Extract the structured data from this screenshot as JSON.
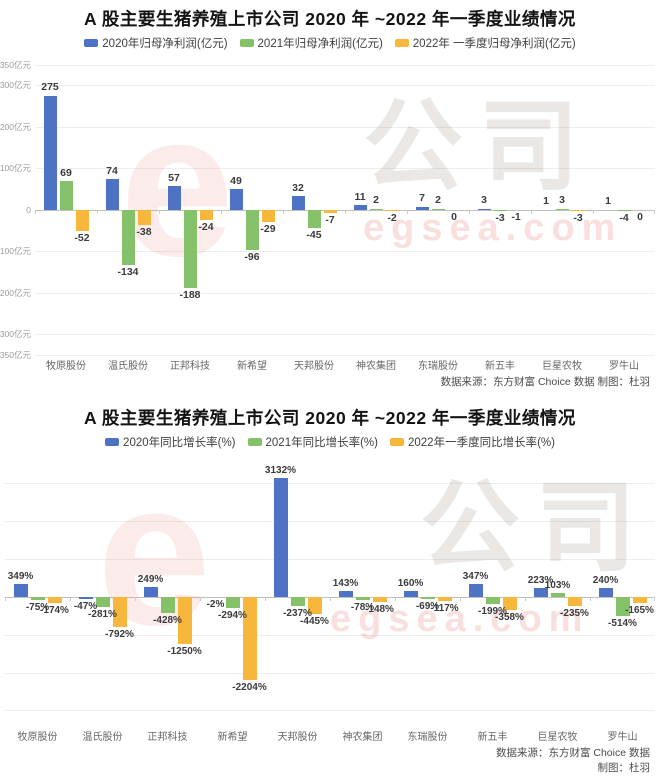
{
  "chart_data": [
    {
      "type": "bar",
      "title": "A 股主要生猪养殖上市公司 2020 年 ~2022 年一季度业绩情况",
      "legend_position": "top",
      "grid": true,
      "categories": [
        "牧原股份",
        "温氏股份",
        "正邦科技",
        "新希望",
        "天邦股份",
        "神农集团",
        "东瑞股份",
        "新五丰",
        "巨星农牧",
        "罗牛山"
      ],
      "series": [
        {
          "name": "2020年归母净利润(亿元)",
          "color": "#4e72c4",
          "values": [
            275,
            74,
            57,
            49,
            32,
            11,
            7,
            3,
            1,
            1
          ]
        },
        {
          "name": "2021年归母净利润(亿元)",
          "color": "#85c169",
          "values": [
            69,
            -134,
            -188,
            -96,
            -45,
            2,
            2,
            -3,
            3,
            -4
          ]
        },
        {
          "name": "2022年 一季度归母净利润(亿元)",
          "color": "#f6b73c",
          "values": [
            -52,
            -38,
            -24,
            -29,
            -7,
            -2,
            0,
            -1,
            -3,
            0
          ]
        }
      ],
      "value_suffix": "",
      "y_unit": "亿元",
      "ylim": [
        -350,
        350
      ],
      "y_ticks": [
        {
          "value": 350,
          "label": "350亿元"
        },
        {
          "value": 300,
          "label": "300亿元"
        },
        {
          "value": 200,
          "label": "200亿元"
        },
        {
          "value": 100,
          "label": "100亿元"
        },
        {
          "value": 0,
          "label": "0"
        },
        {
          "value": -100,
          "label": "-100亿元"
        },
        {
          "value": -200,
          "label": "-200亿元"
        },
        {
          "value": -300,
          "label": "-300亿元"
        },
        {
          "value": -350,
          "label": "-350亿元"
        }
      ],
      "source_lines": [
        "数据来源：东方财富 Choice 数据 制图：杜羽"
      ],
      "watermark": {
        "logo": "e",
        "text": "公司",
        "domain": "egsea.com"
      }
    },
    {
      "type": "bar",
      "title": "A 股主要生猪养殖上市公司 2020 年 ~2022 年一季度业绩情况",
      "legend_position": "top",
      "grid": true,
      "categories": [
        "牧原股份",
        "温氏股份",
        "正邦科技",
        "新希望",
        "天邦股份",
        "神农集团",
        "东瑞股份",
        "新五丰",
        "巨星农牧",
        "罗牛山"
      ],
      "series": [
        {
          "name": "2020年同比增长率(%)",
          "color": "#4e72c4",
          "values": [
            349,
            -47,
            249,
            -2,
            3132,
            143,
            160,
            347,
            223,
            240
          ]
        },
        {
          "name": "2021年同比增长率(%)",
          "color": "#85c169",
          "values": [
            -75,
            -281,
            -428,
            -294,
            -237,
            -78,
            -69,
            -199,
            103,
            -514
          ]
        },
        {
          "name": "2022年一季度同比增长率(%)",
          "color": "#f6b73c",
          "values": [
            -174,
            -792,
            -1250,
            -2204,
            -445,
            -148,
            -117,
            -358,
            -235,
            -165
          ]
        }
      ],
      "value_suffix": "%",
      "y_unit": "%",
      "ylim": [
        -3100,
        3500
      ],
      "y_ticks": [
        {
          "value": 3000,
          "label": ""
        },
        {
          "value": 2000,
          "label": ""
        },
        {
          "value": 1000,
          "label": ""
        },
        {
          "value": 0,
          "label": ""
        },
        {
          "value": -1000,
          "label": ""
        },
        {
          "value": -2000,
          "label": ""
        },
        {
          "value": -3000,
          "label": ""
        }
      ],
      "source_lines": [
        "数据来源：东方财富 Choice 数据",
        "制图：杜羽"
      ],
      "watermark": {
        "logo": "e",
        "text": "公司",
        "domain": "egsea.com"
      }
    }
  ]
}
